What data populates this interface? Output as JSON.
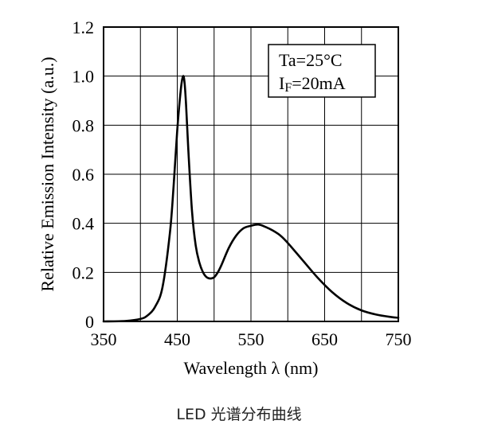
{
  "chart_data": {
    "type": "line",
    "xlabel": "Wavelength λ (nm)",
    "ylabel": "Relative Emission Intensity (a.u.)",
    "xlim": [
      350,
      750
    ],
    "ylim": [
      0,
      1.2
    ],
    "x_ticks": [
      "350",
      "450",
      "550",
      "650",
      "750"
    ],
    "y_ticks": [
      "0",
      "0.2",
      "0.4",
      "0.6",
      "0.8",
      "1.0",
      "1.2"
    ],
    "grid": true,
    "annotation": {
      "line1": "Ta=25°C",
      "line2_prefix": "I",
      "line2_sub": "F",
      "line2_suffix": "=20mA"
    },
    "series": [
      {
        "x": [
          350,
          380,
          400,
          410,
          420,
          430,
          440,
          445,
          450,
          455,
          458,
          460,
          462,
          465,
          470,
          475,
          480,
          485,
          490,
          495,
          500,
          505,
          510,
          520,
          530,
          540,
          550,
          560,
          570,
          580,
          590,
          600,
          620,
          640,
          660,
          680,
          700,
          720,
          740,
          750
        ],
        "y": [
          0,
          0.002,
          0.01,
          0.025,
          0.06,
          0.14,
          0.36,
          0.55,
          0.78,
          0.95,
          1.0,
          0.97,
          0.88,
          0.7,
          0.45,
          0.31,
          0.24,
          0.2,
          0.18,
          0.175,
          0.18,
          0.2,
          0.23,
          0.3,
          0.35,
          0.38,
          0.39,
          0.395,
          0.385,
          0.37,
          0.35,
          0.32,
          0.25,
          0.18,
          0.12,
          0.075,
          0.045,
          0.028,
          0.018,
          0.015
        ]
      }
    ]
  },
  "caption": "LED 光谱分布曲线"
}
